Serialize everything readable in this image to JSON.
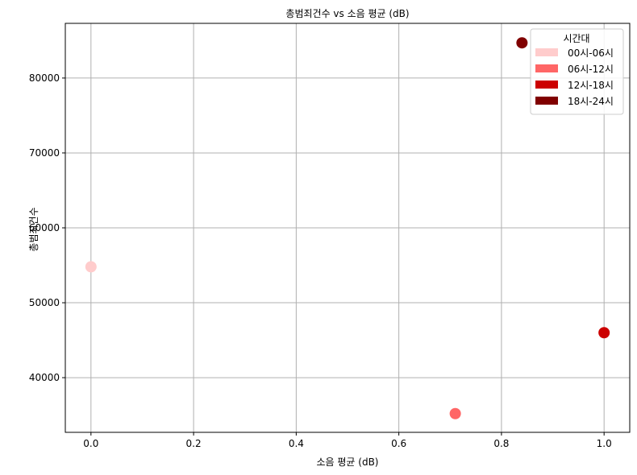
{
  "chart_data": {
    "type": "scatter",
    "title": "총범죄건수 vs 소음 평균 (dB)",
    "xlabel": "소음 평균 (dB)",
    "ylabel": "총범죄건수",
    "xlim": [
      -0.05,
      1.05
    ],
    "ylim": [
      32700,
      87300
    ],
    "xticks": [
      0.0,
      0.2,
      0.4,
      0.6,
      0.8,
      1.0
    ],
    "xtick_labels": [
      "0.0",
      "0.2",
      "0.4",
      "0.6",
      "0.8",
      "1.0"
    ],
    "yticks": [
      40000,
      50000,
      60000,
      70000,
      80000
    ],
    "ytick_labels": [
      "40000",
      "50000",
      "60000",
      "70000",
      "80000"
    ],
    "grid": true,
    "legend": {
      "title": "시간대",
      "placement": "top-right",
      "entries": [
        {
          "label": "00시-06시",
          "color": "#ffcccc"
        },
        {
          "label": "06시-12시",
          "color": "#ff6666"
        },
        {
          "label": "12시-18시",
          "color": "#cc0000"
        },
        {
          "label": "18시-24시",
          "color": "#800000"
        }
      ]
    },
    "points": [
      {
        "series": "00시-06시",
        "x": 0.0,
        "y": 54800,
        "color": "#ffcccc"
      },
      {
        "series": "06시-12시",
        "x": 0.71,
        "y": 35200,
        "color": "#ff6666"
      },
      {
        "series": "12시-18시",
        "x": 1.0,
        "y": 46000,
        "color": "#cc0000"
      },
      {
        "series": "18시-24시",
        "x": 0.84,
        "y": 84700,
        "color": "#800000"
      }
    ]
  }
}
